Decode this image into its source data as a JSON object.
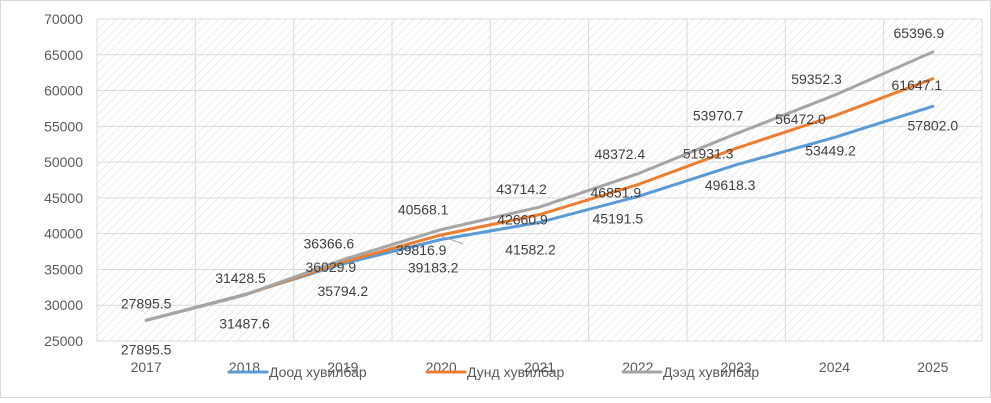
{
  "chart_data": {
    "type": "line",
    "title": "",
    "xlabel": "",
    "ylabel": "",
    "categories": [
      "2017",
      "2018",
      "2019",
      "2020",
      "2021",
      "2022",
      "2023",
      "2024",
      "2025"
    ],
    "ylim": [
      25000,
      70000
    ],
    "yticks": [
      "25000",
      "30000",
      "35000",
      "40000",
      "45000",
      "50000",
      "55000",
      "60000",
      "65000",
      "70000"
    ],
    "grid": true,
    "legend_position": "bottom",
    "series": [
      {
        "name": "Доод хувилбар",
        "color": "#5b9bd5",
        "values": [
          27895.5,
          31487.6,
          35794.2,
          39183.2,
          41582.2,
          45191.5,
          49618.3,
          53449.2,
          57802.0
        ],
        "labels": [
          "27895.5",
          "31487.6",
          "35794.2",
          "39183.2",
          "41582.2",
          "45191.5",
          "49618.3",
          "53449.2",
          "57802.0"
        ]
      },
      {
        "name": "Дунд хувилбар",
        "color": "#ed7d31",
        "values": [
          27895.5,
          31428.5,
          36029.9,
          39816.9,
          42660.9,
          46851.9,
          51931.3,
          56472.0,
          61647.1
        ],
        "labels": [
          "",
          "",
          "36029.9",
          "39816.9",
          "42660.9",
          "46851.9",
          "51931.3",
          "56472.0",
          "61647.1"
        ]
      },
      {
        "name": "Дээд хувилбар",
        "color": "#a5a5a5",
        "values": [
          27895.5,
          31428.5,
          36366.6,
          40568.1,
          43714.2,
          48372.4,
          53970.7,
          59352.3,
          65396.9
        ],
        "labels": [
          "27895.5",
          "31428.5",
          "36366.6",
          "40568.1",
          "43714.2",
          "48372.4",
          "53970.7",
          "59352.3",
          "65396.9"
        ]
      }
    ]
  }
}
